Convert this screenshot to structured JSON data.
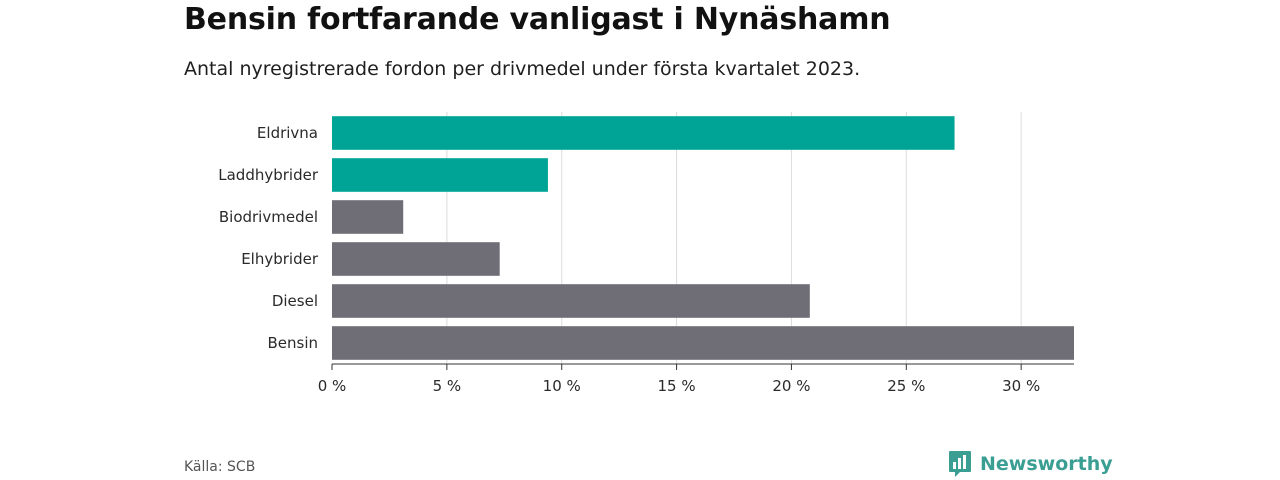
{
  "header": {
    "title": "Bensin fortfarande vanligast i Nynäshamn",
    "subtitle": "Antal nyregistrerade fordon per drivmedel under första kvartalet 2023."
  },
  "footer": {
    "source": "Källa: SCB",
    "brand": "Newsworthy",
    "brand_icon": "bar-chart-icon"
  },
  "colors": {
    "highlight": "#00a497",
    "default": "#6f6e76",
    "brand": "#3a9e93"
  },
  "chart_data": {
    "type": "bar",
    "orientation": "horizontal",
    "categories": [
      "Eldrivna",
      "Laddhybrider",
      "Biodrivmedel",
      "Elhybrider",
      "Diesel",
      "Bensin"
    ],
    "values": [
      27.1,
      9.4,
      3.1,
      7.3,
      20.8,
      32.3
    ],
    "highlighted": [
      true,
      true,
      false,
      false,
      false,
      false
    ],
    "x_ticks": [
      0,
      5,
      10,
      15,
      20,
      25,
      30
    ],
    "x_tick_labels": [
      "0 %",
      "5 %",
      "10 %",
      "15 %",
      "20 %",
      "25 %",
      "30 %"
    ],
    "xlim": [
      0,
      32.3
    ],
    "grid": true
  }
}
